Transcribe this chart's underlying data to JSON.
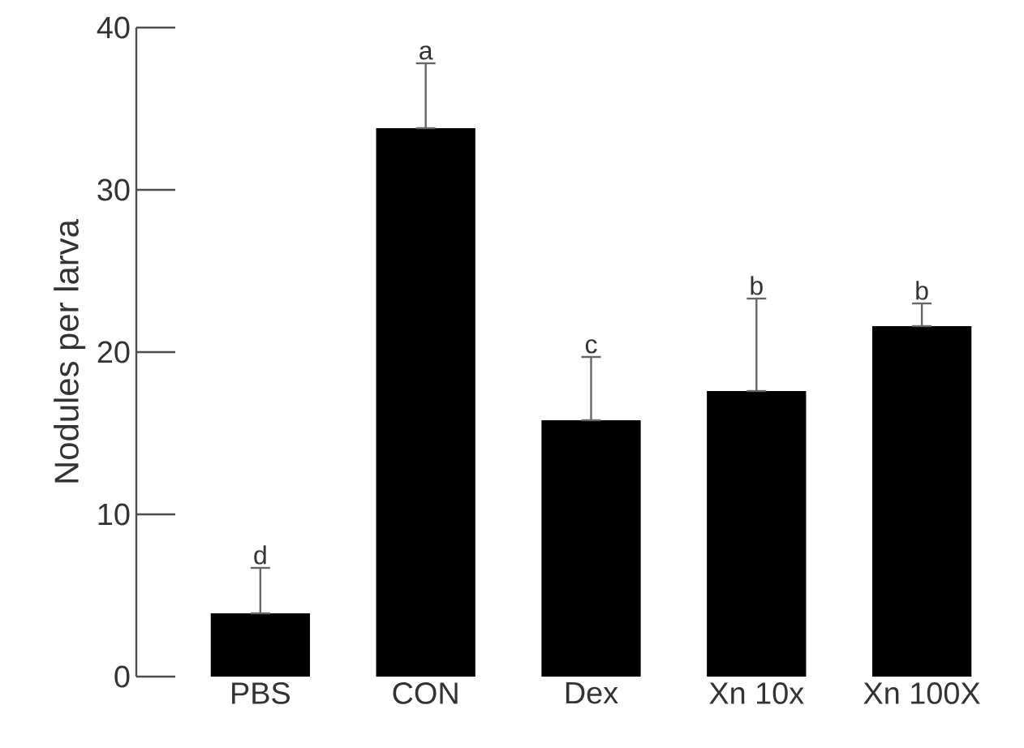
{
  "chart_data": {
    "type": "bar",
    "ylabel": "Nodules per larva",
    "categories": [
      "PBS",
      "CON",
      "Dex",
      "Xn 10x",
      "Xn 100X"
    ],
    "values": [
      3.9,
      33.8,
      15.8,
      17.6,
      21.6
    ],
    "errors": [
      [
        3.9,
        6.7
      ],
      [
        33.8,
        37.8
      ],
      [
        15.8,
        19.7
      ],
      [
        17.6,
        23.3
      ],
      [
        21.6,
        23.0
      ]
    ],
    "color": "#000000",
    "ylim": [
      0,
      40
    ],
    "yticks": [
      0,
      10,
      20,
      30,
      40
    ],
    "annotations": [
      "d",
      "a",
      "c",
      "b",
      "b"
    ]
  }
}
